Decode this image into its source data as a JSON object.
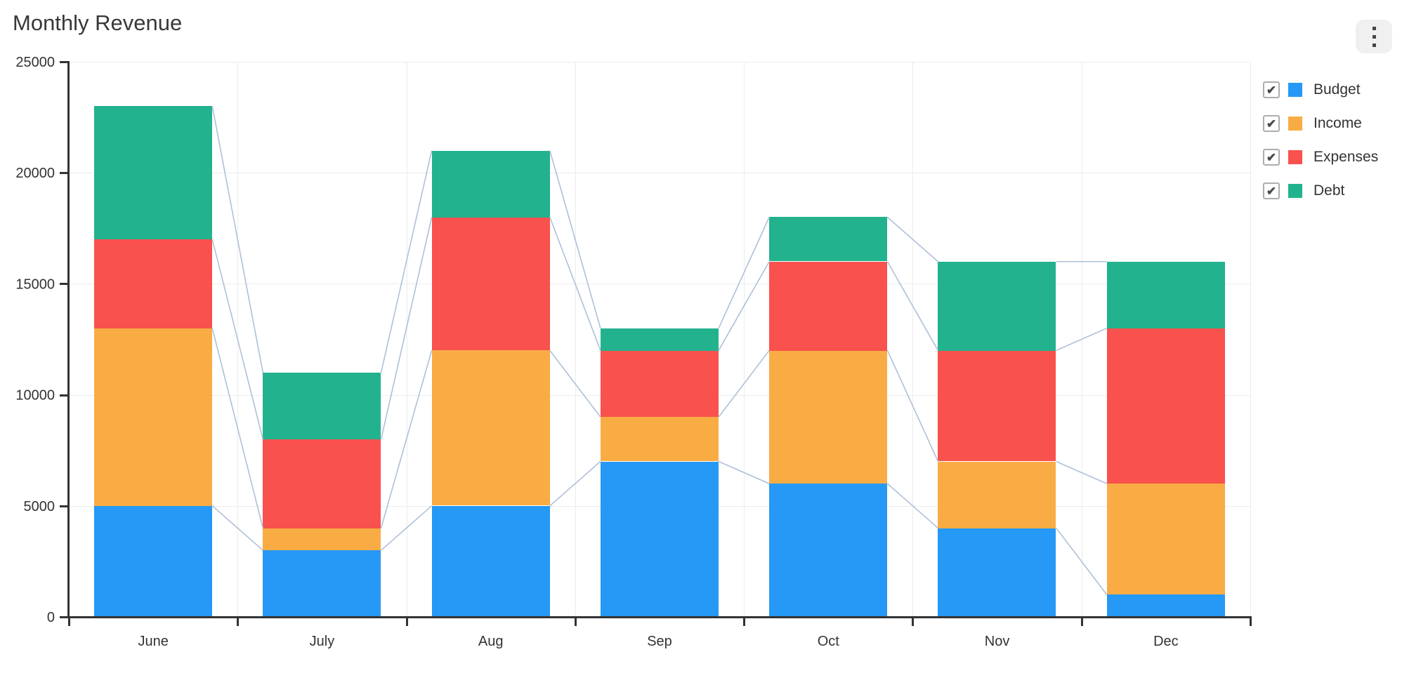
{
  "title": "Monthly Revenue",
  "menu_button": {
    "icon": "kebab-vertical"
  },
  "legend": {
    "check_glyph": "✔"
  },
  "chart_data": {
    "type": "bar",
    "stacked": true,
    "title": "Monthly Revenue",
    "categories": [
      "June",
      "July",
      "Aug",
      "Sep",
      "Oct",
      "Nov",
      "Dec"
    ],
    "series": [
      {
        "name": "Budget",
        "color": "#2599F5",
        "checked": true,
        "values": [
          5000,
          3000,
          5000,
          7000,
          6000,
          4000,
          1000
        ]
      },
      {
        "name": "Income",
        "color": "#F9AC44",
        "checked": true,
        "values": [
          8000,
          1000,
          7000,
          2000,
          6000,
          3000,
          5000
        ]
      },
      {
        "name": "Expenses",
        "color": "#F9514D",
        "checked": true,
        "values": [
          4000,
          4000,
          6000,
          3000,
          4000,
          5000,
          7000
        ]
      },
      {
        "name": "Debt",
        "color": "#22B28E",
        "checked": true,
        "values": [
          6000,
          3000,
          3000,
          1000,
          2000,
          4000,
          3000
        ]
      }
    ],
    "stack_totals": [
      23000,
      11000,
      21000,
      13000,
      18000,
      16000,
      16000
    ],
    "ylim": [
      0,
      25000
    ],
    "y_ticks": [
      0,
      5000,
      10000,
      15000,
      20000,
      25000
    ],
    "xlabel": "",
    "ylabel": "",
    "grid": true,
    "legend_position": "right",
    "legend_checkboxes": true,
    "connector_lines": true,
    "colors": {
      "axis": "#333333",
      "grid": "#ececec",
      "connector": "#afc0d8",
      "text": "#333333"
    }
  }
}
